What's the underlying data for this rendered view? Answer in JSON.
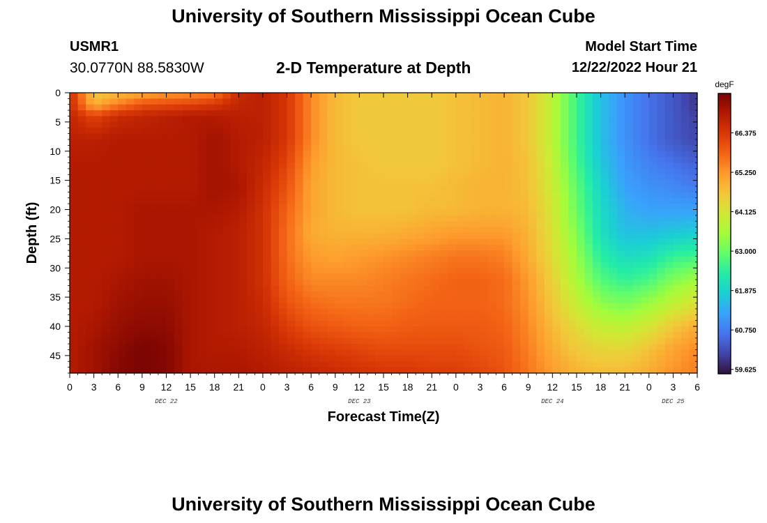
{
  "header": {
    "title_top": "University of Southern Mississippi Ocean Cube",
    "station_id": "USMR1",
    "station_coords": "30.0770N  88.5830W",
    "plot_title": "2-D Temperature at Depth",
    "model_start_label": "Model Start Time",
    "model_start_value": "12/22/2022 Hour 21"
  },
  "footer": {
    "title_bottom": "University of Southern Mississippi Ocean Cube"
  },
  "chart_data": {
    "type": "heatmap",
    "title": "2-D Temperature at Depth",
    "xlabel": "Forecast Time(Z)",
    "ylabel": "Depth (ft)",
    "x_tick_labels": [
      "0",
      "3",
      "6",
      "9",
      "12",
      "15",
      "18",
      "21",
      "0",
      "3",
      "6",
      "9",
      "12",
      "15",
      "18",
      "21",
      "0",
      "3",
      "6",
      "9",
      "12",
      "15",
      "18",
      "21",
      "0",
      "3",
      "6"
    ],
    "x_range_hours": [
      0,
      78
    ],
    "x_tick_step_hours": 3,
    "date_labels": [
      {
        "label": "DEC 22",
        "hour": 12
      },
      {
        "label": "DEC 23",
        "hour": 36
      },
      {
        "label": "DEC 24",
        "hour": 60
      },
      {
        "label": "DEC 25",
        "hour": 75
      }
    ],
    "y_tick_labels": [
      "0",
      "5",
      "10",
      "15",
      "20",
      "25",
      "30",
      "35",
      "40",
      "45"
    ],
    "y_range_ft": [
      0,
      48
    ],
    "y_reversed": true,
    "colorbar": {
      "unit": "degF",
      "ticks": [
        "66.375",
        "65.250",
        "64.125",
        "63.000",
        "61.875",
        "60.750",
        "59.625"
      ],
      "range": [
        59.5,
        67.5
      ],
      "colors": [
        "#30123b",
        "#4145ab",
        "#4675ed",
        "#39a2fc",
        "#1bcfd4",
        "#24eca6",
        "#61fc6c",
        "#a4fc3b",
        "#d1e834",
        "#f3c63a",
        "#fe9b2d",
        "#f36315",
        "#d93806",
        "#b11901",
        "#7a0402"
      ]
    },
    "field": {
      "description_units": "degF",
      "time_hours": [
        0,
        3,
        6,
        9,
        12,
        15,
        18,
        21,
        24,
        27,
        30,
        33,
        36,
        39,
        42,
        45,
        48,
        51,
        54,
        57,
        60,
        63,
        66,
        69,
        72,
        75,
        78
      ],
      "depth_ft": [
        0,
        2,
        4,
        8,
        12,
        16,
        20,
        24,
        28,
        32,
        36,
        40,
        44,
        48
      ],
      "values": [
        [
          66.6,
          64.6,
          64.8,
          65.0,
          65.2,
          65.3,
          65.5,
          66.6,
          66.8,
          66.4,
          65.4,
          64.8,
          64.6,
          64.6,
          64.6,
          64.6,
          64.7,
          64.8,
          64.9,
          64.6,
          63.8,
          62.6,
          61.6,
          61.0,
          60.6,
          60.3,
          59.9
        ],
        [
          66.6,
          64.9,
          65.5,
          66.0,
          66.1,
          66.2,
          66.4,
          66.7,
          66.8,
          66.4,
          65.4,
          64.8,
          64.6,
          64.6,
          64.6,
          64.6,
          64.7,
          64.8,
          64.9,
          64.6,
          63.8,
          62.6,
          61.6,
          61.0,
          60.6,
          60.3,
          59.9
        ],
        [
          66.7,
          66.2,
          66.6,
          66.7,
          66.8,
          66.9,
          66.9,
          66.8,
          66.8,
          66.4,
          65.4,
          64.8,
          64.6,
          64.6,
          64.6,
          64.6,
          64.7,
          64.8,
          64.9,
          64.6,
          63.8,
          62.6,
          61.6,
          61.0,
          60.6,
          60.3,
          60.0
        ],
        [
          66.8,
          66.8,
          66.9,
          66.9,
          66.9,
          66.9,
          67.1,
          66.9,
          66.8,
          66.4,
          65.4,
          64.8,
          64.6,
          64.6,
          64.6,
          64.6,
          64.7,
          64.8,
          64.9,
          64.6,
          63.8,
          62.6,
          61.6,
          61.0,
          60.6,
          60.3,
          60.1
        ],
        [
          66.9,
          66.9,
          66.9,
          66.9,
          66.9,
          66.9,
          67.1,
          66.9,
          66.7,
          66.2,
          65.2,
          64.8,
          64.7,
          64.6,
          64.6,
          64.6,
          64.7,
          64.8,
          64.9,
          64.7,
          63.9,
          62.7,
          61.7,
          61.1,
          60.8,
          60.6,
          60.4
        ],
        [
          66.9,
          66.9,
          66.9,
          66.9,
          66.9,
          66.9,
          67.1,
          67.0,
          66.6,
          66.0,
          65.1,
          64.8,
          64.7,
          64.7,
          64.7,
          64.7,
          64.8,
          64.9,
          64.9,
          64.7,
          64.0,
          62.9,
          61.9,
          61.2,
          61.0,
          60.9,
          60.7
        ],
        [
          66.9,
          66.9,
          66.9,
          67.0,
          67.0,
          67.0,
          67.0,
          66.9,
          66.5,
          65.8,
          65.1,
          64.8,
          64.7,
          64.7,
          64.7,
          64.8,
          64.8,
          64.9,
          64.9,
          64.8,
          64.1,
          63.0,
          62.0,
          61.4,
          61.2,
          61.2,
          61.2
        ],
        [
          66.9,
          66.9,
          66.9,
          67.0,
          67.0,
          67.0,
          66.9,
          66.8,
          66.5,
          65.7,
          65.0,
          64.9,
          64.9,
          64.9,
          65.0,
          65.1,
          65.2,
          65.2,
          65.2,
          64.9,
          64.2,
          63.2,
          62.1,
          61.6,
          61.6,
          61.7,
          61.8
        ],
        [
          66.9,
          66.9,
          66.9,
          67.0,
          67.0,
          67.0,
          66.9,
          66.8,
          66.5,
          65.7,
          65.2,
          65.1,
          65.2,
          65.3,
          65.4,
          65.5,
          65.6,
          65.6,
          65.5,
          65.0,
          64.3,
          63.4,
          62.4,
          62.0,
          62.1,
          62.5,
          62.6
        ],
        [
          66.9,
          66.9,
          67.0,
          67.1,
          67.1,
          67.0,
          66.9,
          66.8,
          66.5,
          65.8,
          65.4,
          65.4,
          65.4,
          65.5,
          65.6,
          65.7,
          65.8,
          65.8,
          65.7,
          65.2,
          64.5,
          63.6,
          62.8,
          62.5,
          62.7,
          63.2,
          63.5
        ],
        [
          66.9,
          66.9,
          67.1,
          67.2,
          67.2,
          67.0,
          66.9,
          66.8,
          66.6,
          66.0,
          65.7,
          65.6,
          65.6,
          65.6,
          65.7,
          65.8,
          65.8,
          65.8,
          65.7,
          65.3,
          64.6,
          63.9,
          63.3,
          63.1,
          63.4,
          63.8,
          64.2
        ],
        [
          66.9,
          67.0,
          67.2,
          67.3,
          67.3,
          67.0,
          66.9,
          66.8,
          66.7,
          66.3,
          66.0,
          65.9,
          65.8,
          65.8,
          65.9,
          65.9,
          65.9,
          65.9,
          65.8,
          65.4,
          64.8,
          64.3,
          63.9,
          63.8,
          64.1,
          64.6,
          65.0
        ],
        [
          66.9,
          67.1,
          67.3,
          67.5,
          67.4,
          67.0,
          66.9,
          66.9,
          66.8,
          66.6,
          66.4,
          66.3,
          66.2,
          66.1,
          66.1,
          66.1,
          66.1,
          66.0,
          65.9,
          65.5,
          65.0,
          64.6,
          64.4,
          64.4,
          64.7,
          65.1,
          65.4
        ],
        [
          66.9,
          67.1,
          67.4,
          67.5,
          67.4,
          67.0,
          67.0,
          67.0,
          66.9,
          66.8,
          66.7,
          66.6,
          66.5,
          66.4,
          66.4,
          66.3,
          66.3,
          66.2,
          66.0,
          65.6,
          65.2,
          64.9,
          64.8,
          64.8,
          65.0,
          65.3,
          65.5
        ]
      ]
    }
  }
}
